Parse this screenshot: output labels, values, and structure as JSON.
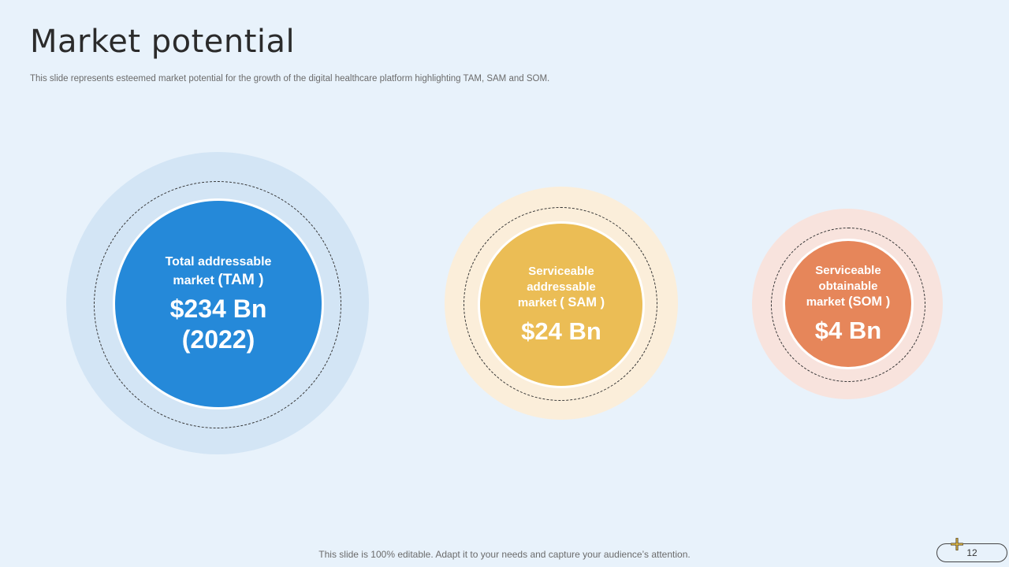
{
  "header": {
    "title": "Market potential",
    "subtitle": "This slide represents esteemed market potential for the growth of the digital healthcare platform highlighting TAM, SAM and SOM."
  },
  "markets": [
    {
      "key": "tam",
      "line1": "Total addressable",
      "line2": "market",
      "abbr": "(TAM )",
      "value": "$234 Bn",
      "year": "(2022)",
      "color": "#2589d9",
      "halo": "#d3e5f5"
    },
    {
      "key": "sam",
      "line1": "Serviceable",
      "line2": "addressable",
      "line3": "market",
      "abbr": "( SAM )",
      "value": "$24 Bn",
      "color": "#ebbd55",
      "halo": "#fbeeda"
    },
    {
      "key": "som",
      "line1": "Serviceable",
      "line2": "obtainable",
      "line3": "market",
      "abbr": "(SOM )",
      "value": "$4 Bn",
      "color": "#e6865a",
      "halo": "#f8e3dd"
    }
  ],
  "footer": {
    "note": "This slide is 100% editable. Adapt it to your needs and capture your audience’s attention.",
    "page_number": "12"
  }
}
